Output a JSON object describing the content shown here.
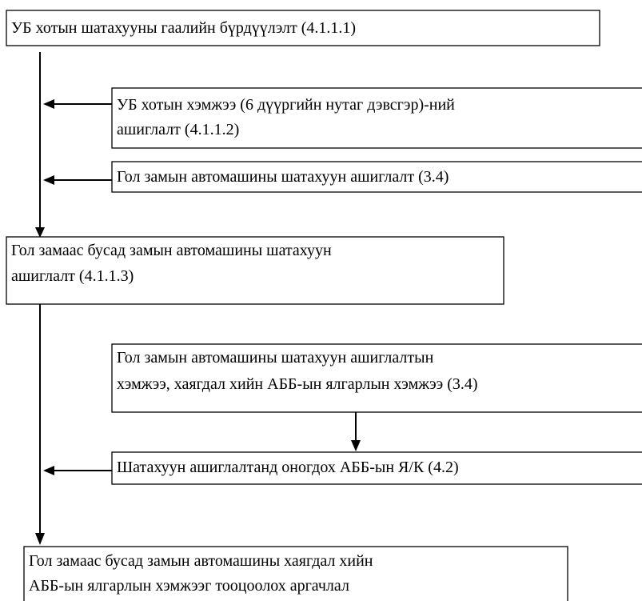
{
  "nodes": [
    {
      "lines": [
        "УБ хотын шатахууны гаалийн бүрдүүлэлт (4.1.1.1)"
      ]
    },
    {
      "lines": [
        "УБ хотын хэмжээ (6 дүүргийн нутаг дэвсгэр)-ний",
        "ашиглалт (4.1.1.2)"
      ]
    },
    {
      "lines": [
        "Гол замын автомашины шатахуун ашиглалт (3.4)"
      ]
    },
    {
      "lines": [
        "Гол замаас бусад замын автомашины шатахуун",
        "ашиглалт (4.1.1.3)"
      ]
    },
    {
      "lines": [
        "Гол замын автомашины шатахуун ашиглалтын",
        "хэмжээ, хаягдал хийн АББ-ын ялгарлын хэмжээ (3.4)"
      ]
    },
    {
      "lines": [
        "Шатахуун ашиглалтанд оногдох АББ-ын Я/К (4.2)"
      ]
    },
    {
      "lines": [
        "Гол замаас бусад замын автомашины хаягдал хийн",
        "АББ-ын ялгарлын хэмжээг тооцоолох аргачлал"
      ]
    }
  ]
}
